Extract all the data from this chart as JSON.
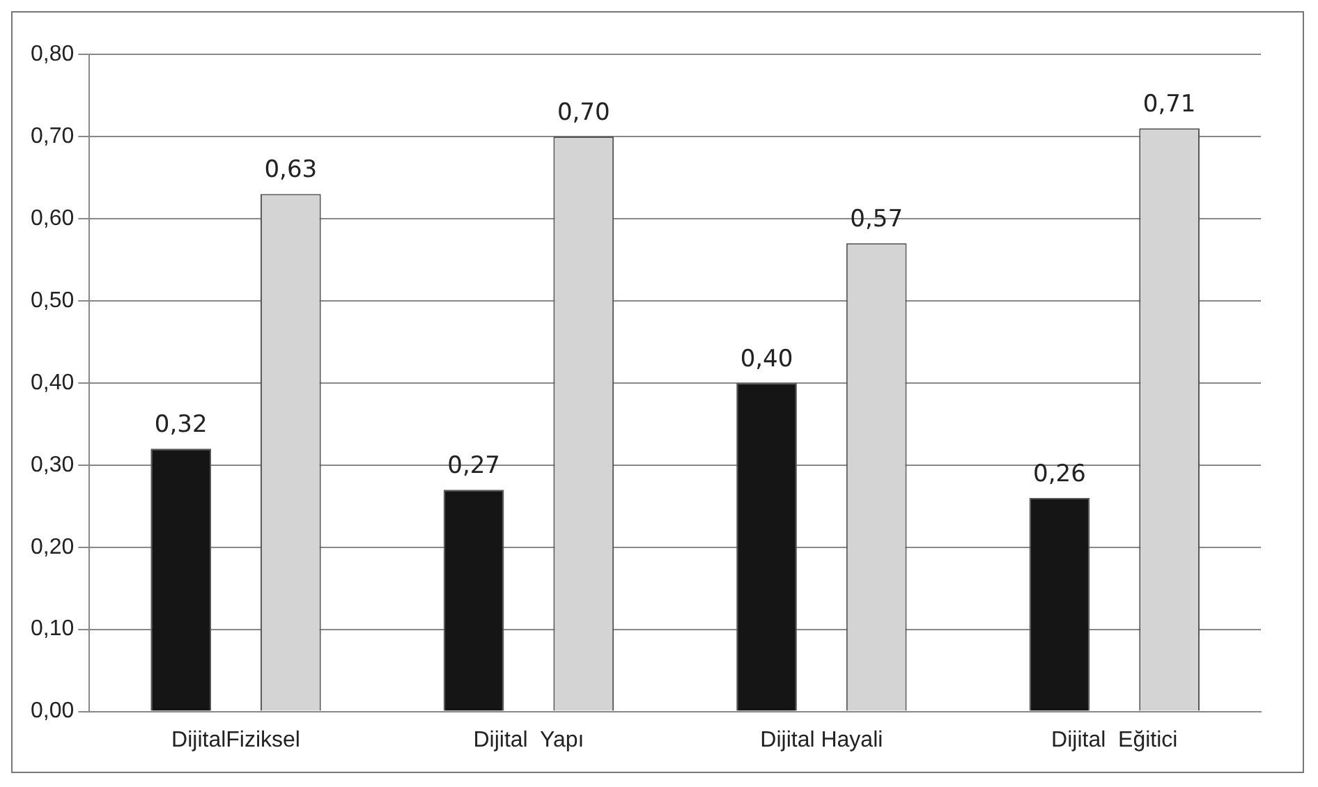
{
  "chart_data": {
    "type": "bar",
    "categories": [
      "DijitalFiziksel",
      "Dijital  Yapı",
      "Dijital Hayali",
      "Dijital  Eğitici"
    ],
    "series": [
      {
        "color": "#151515",
        "values": [
          0.32,
          0.27,
          0.4,
          0.26
        ],
        "value_labels": [
          "0,32",
          "0,27",
          "0,40",
          "0,26"
        ]
      },
      {
        "color": "#d4d4d4",
        "values": [
          0.63,
          0.7,
          0.57,
          0.71
        ],
        "value_labels": [
          "0,63",
          "0,70",
          "0,57",
          "0,71"
        ]
      }
    ],
    "ylim": [
      0,
      0.8
    ],
    "yticks": [
      {
        "value": 0,
        "label": "0,00"
      },
      {
        "value": 0.1,
        "label": "0,10"
      },
      {
        "value": 0.2,
        "label": "0,20"
      },
      {
        "value": 0.3,
        "label": "0,30"
      },
      {
        "value": 0.4,
        "label": "0,40"
      },
      {
        "value": 0.5,
        "label": "0,50"
      },
      {
        "value": 0.6,
        "label": "0,60"
      },
      {
        "value": 0.7,
        "label": "0,70"
      },
      {
        "value": 0.8,
        "label": "0,80"
      }
    ],
    "grid": "y",
    "legend": false
  }
}
